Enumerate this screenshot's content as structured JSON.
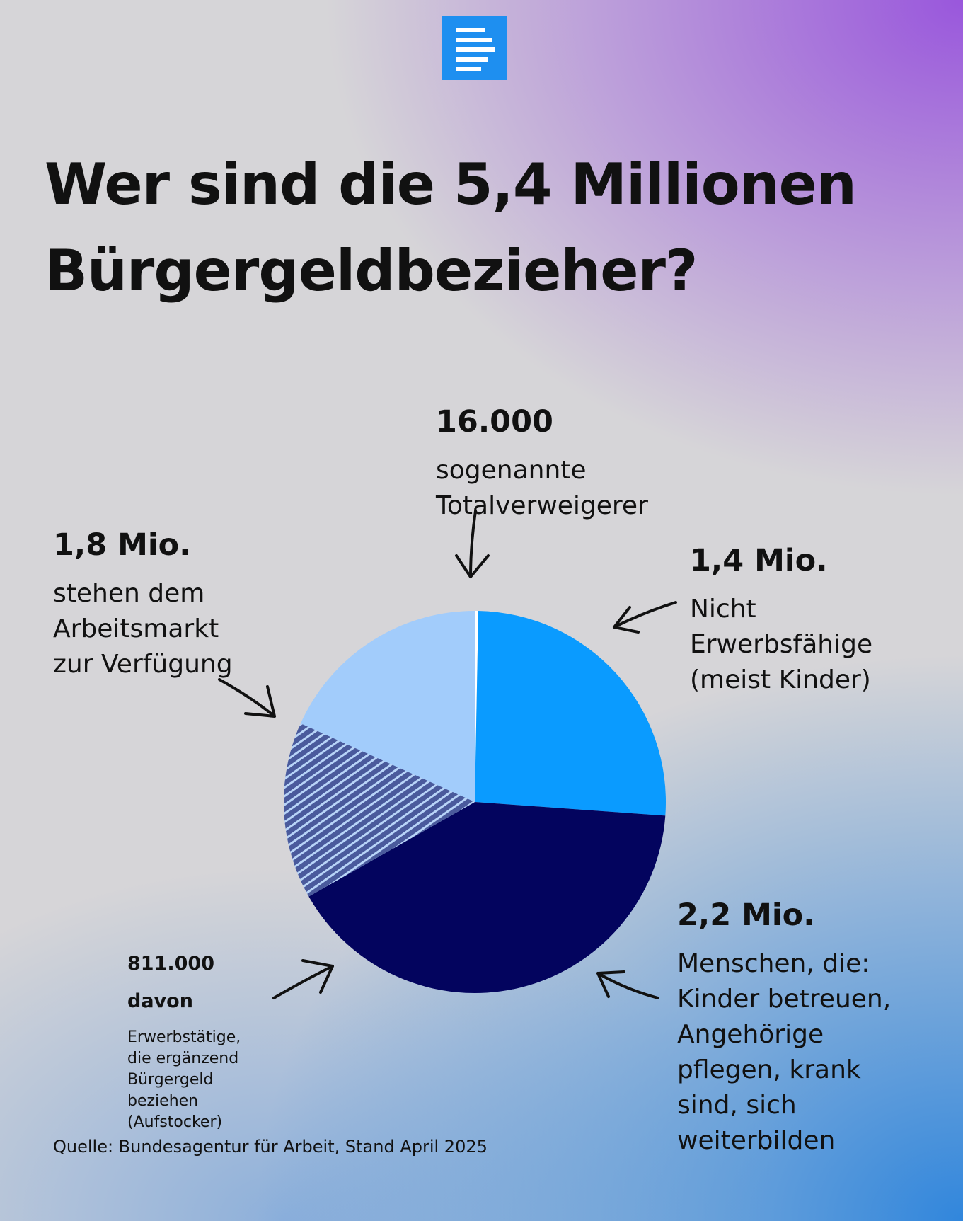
{
  "chart_data": {
    "type": "pie",
    "title": "Wer sind die 5,4 Millionen Bürgergeldbezieher?",
    "categories": [
      "sogenannte\nTotalverweigerer",
      "Nicht\nErwerbsfähige\n(meist Kinder)",
      "Menschen, die:\nKinder betreuen,\nAngehörige\npflegen, krank\nsind, sich\nweiterbilden",
      "stehen dem\nArbeitsmarkt\nzur Verfügung"
    ],
    "values": [
      16000,
      1400000,
      2200000,
      1800000
    ],
    "value_labels": [
      "16.000",
      "1,4 Mio.",
      "2,2 Mio.",
      "1,8 Mio."
    ],
    "colors": [
      "#ffffff",
      "#0a9bff",
      "#03045e",
      "#a2ccfb"
    ],
    "subset": {
      "value": 811000,
      "value_label": "811.000",
      "label": "davon",
      "text": "Erwerbstätige,\ndie ergänzend\nBürgergeld\nbeziehen\n(Aufstocker)",
      "color": "#4a5a9c"
    },
    "source": "Quelle: Bundesagentur für Arbeit, Stand April 2025"
  }
}
